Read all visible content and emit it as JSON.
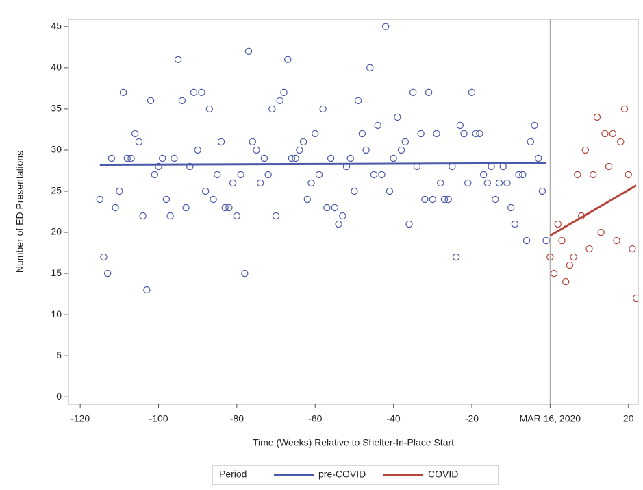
{
  "chart_data": {
    "type": "scatter",
    "x_label": "Time (Weeks) Relative to Shelter-In-Place Start",
    "y_label": "Number of ED Presentations",
    "xlim": [
      -123,
      22.5
    ],
    "ylim": [
      -0.9,
      45.9
    ],
    "xticks": [
      -120,
      -100,
      -80,
      -60,
      -40,
      -20,
      {
        "value": 0,
        "label": "MAR 16, 2020"
      },
      20
    ],
    "yticks": [
      0,
      5,
      10,
      15,
      20,
      25,
      30,
      35,
      40,
      45
    ],
    "reference_x": 0,
    "legend_title": "Period",
    "legend_position": "bottom",
    "series": [
      {
        "name": "pre-COVID",
        "color": "#4a5aa8",
        "x": [
          -115,
          -114,
          -113,
          -112,
          -111,
          -110,
          -109,
          -108,
          -107,
          -106,
          -105,
          -104,
          -103,
          -102,
          -101,
          -100,
          -99,
          -98,
          -97,
          -96,
          -95,
          -94,
          -93,
          -92,
          -91,
          -90,
          -89,
          -88,
          -87,
          -86,
          -85,
          -84,
          -83,
          -82,
          -81,
          -80,
          -79,
          -78,
          -77,
          -76,
          -75,
          -74,
          -73,
          -72,
          -71,
          -70,
          -69,
          -68,
          -67,
          -66,
          -65,
          -64,
          -63,
          -62,
          -61,
          -60,
          -59,
          -58,
          -57,
          -56,
          -55,
          -54,
          -53,
          -52,
          -51,
          -50,
          -49,
          -48,
          -47,
          -46,
          -45,
          -44,
          -43,
          -42,
          -41,
          -40,
          -39,
          -38,
          -37,
          -36,
          -35,
          -34,
          -33,
          -32,
          -31,
          -30,
          -29,
          -28,
          -27,
          -26,
          -25,
          -24,
          -23,
          -22,
          -21,
          -20,
          -19,
          -18,
          -17,
          -16,
          -15,
          -14,
          -13,
          -12,
          -11,
          -10,
          -9,
          -8,
          -7,
          -6,
          -5,
          -4,
          -3,
          -2,
          -1
        ],
        "values": [
          24,
          17,
          15,
          29,
          23,
          25,
          37,
          29,
          29,
          32,
          31,
          22,
          13,
          36,
          27,
          28,
          29,
          24,
          22,
          29,
          41,
          36,
          23,
          28,
          37,
          30,
          37,
          25,
          35,
          24,
          27,
          31,
          23,
          23,
          26,
          22,
          27,
          15,
          42,
          31,
          30,
          26,
          29,
          27,
          35,
          22,
          36,
          37,
          41,
          29,
          29,
          30,
          31,
          24,
          26,
          32,
          27,
          35,
          23,
          29,
          23,
          21,
          22,
          28,
          29,
          25,
          36,
          32,
          30,
          40,
          27,
          33,
          27,
          45,
          25,
          29,
          34,
          30,
          31,
          21,
          37,
          28,
          32,
          24,
          37,
          24,
          32,
          26,
          24,
          24,
          28,
          17,
          33,
          32,
          26,
          37,
          32,
          32,
          27,
          26,
          28,
          24,
          26,
          28,
          26,
          23,
          21,
          27,
          27,
          19,
          31,
          33,
          29,
          25,
          19
        ],
        "fit_x": [
          -115,
          -1
        ],
        "fit_values": [
          28.2,
          28.4
        ]
      },
      {
        "name": "COVID",
        "color": "#b5453a",
        "x": [
          0,
          1,
          2,
          3,
          4,
          5,
          6,
          7,
          8,
          9,
          10,
          11,
          12,
          13,
          14,
          15,
          16,
          17,
          18,
          19,
          20,
          21,
          22
        ],
        "values": [
          17,
          15,
          21,
          19,
          14,
          16,
          17,
          27,
          22,
          30,
          18,
          27,
          34,
          20,
          32,
          28,
          32,
          19,
          31,
          35,
          27,
          18,
          12
        ],
        "fit_x": [
          0,
          22
        ],
        "fit_values": [
          19.6,
          25.7
        ]
      }
    ]
  }
}
